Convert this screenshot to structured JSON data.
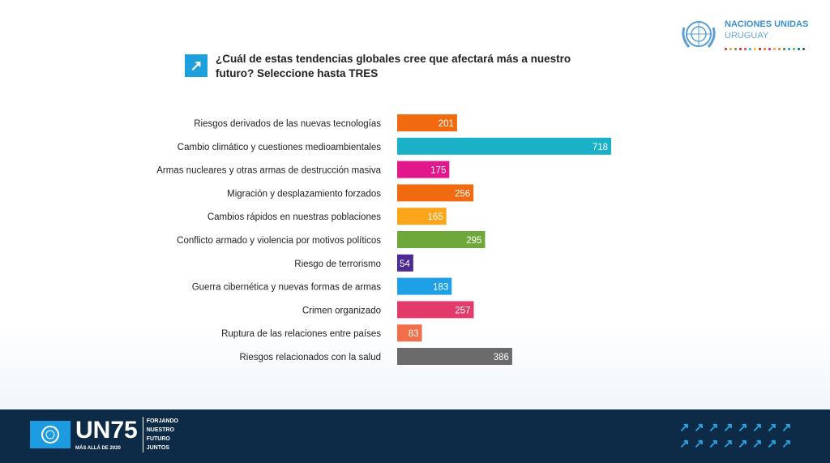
{
  "header": {
    "org_name": "NACIONES UNIDAS",
    "org_country": "URUGUAY",
    "title": "¿Cuál de estas tendencias globales cree que afectará más a nuestro futuro? Seleccione hasta TRES"
  },
  "footer": {
    "logo_text": "UN75",
    "logo_sub": "MÁS ALLÁ DE 2020",
    "slogan": [
      "FORJANDO",
      "NUESTRO",
      "FUTURO",
      "JUNTOS"
    ]
  },
  "chart_data": {
    "type": "bar",
    "orientation": "horizontal",
    "title": "¿Cuál de estas tendencias globales cree que afectará más a nuestro futuro? Seleccione hasta TRES",
    "categories": [
      "Riesgos derivados de las nuevas tecnologías",
      "Cambio climático y cuestiones medioambientales",
      "Armas nucleares y otras armas de destrucción masiva",
      "Migración y desplazamiento forzados",
      "Cambios rápidos en nuestras poblaciones",
      "Conflicto armado y violencia por motivos políticos",
      "Riesgo de terrorismo",
      "Guerra cibernética y nuevas formas de armas",
      "Crimen organizado",
      "Ruptura de las relaciones entre países",
      "Riesgos relacionados con la salud"
    ],
    "values": [
      201,
      718,
      175,
      256,
      165,
      295,
      54,
      183,
      257,
      83,
      386
    ],
    "colors": [
      "#f26a10",
      "#1ab0c8",
      "#e0188c",
      "#f26a10",
      "#fba51b",
      "#6fa83a",
      "#4b2a91",
      "#1da0e6",
      "#e33a6c",
      "#f26d4a",
      "#6b6b6b"
    ],
    "xlim": [
      0,
      718
    ],
    "grid": false,
    "legend": "none"
  }
}
